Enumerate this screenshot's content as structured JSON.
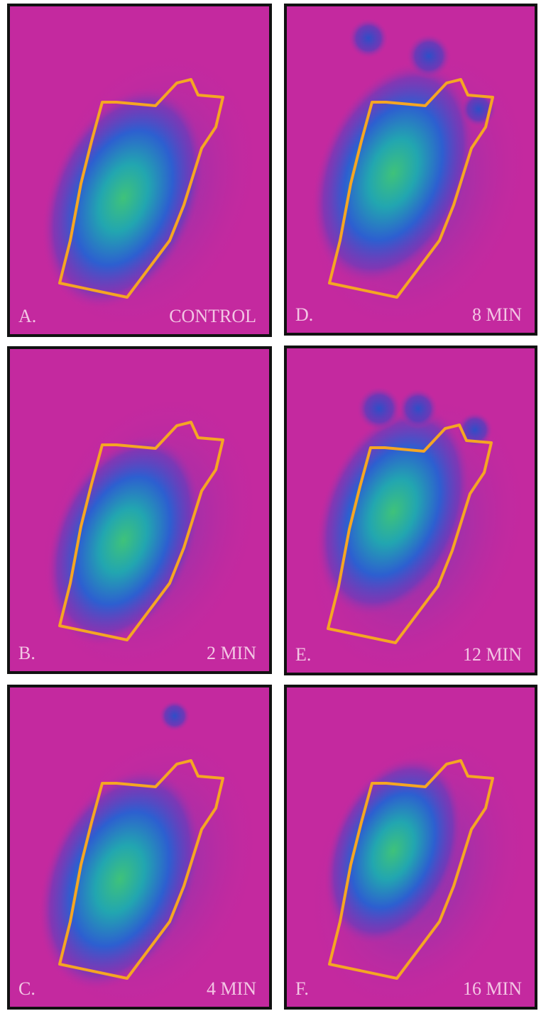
{
  "panels": [
    {
      "letter": "A.",
      "label": "CONTROL"
    },
    {
      "letter": "B.",
      "label": "2 MIN"
    },
    {
      "letter": "C.",
      "label": "4 MIN"
    },
    {
      "letter": "D.",
      "label": "8 MIN"
    },
    {
      "letter": "E.",
      "label": "12 MIN"
    },
    {
      "letter": "F.",
      "label": "16 MIN"
    }
  ]
}
